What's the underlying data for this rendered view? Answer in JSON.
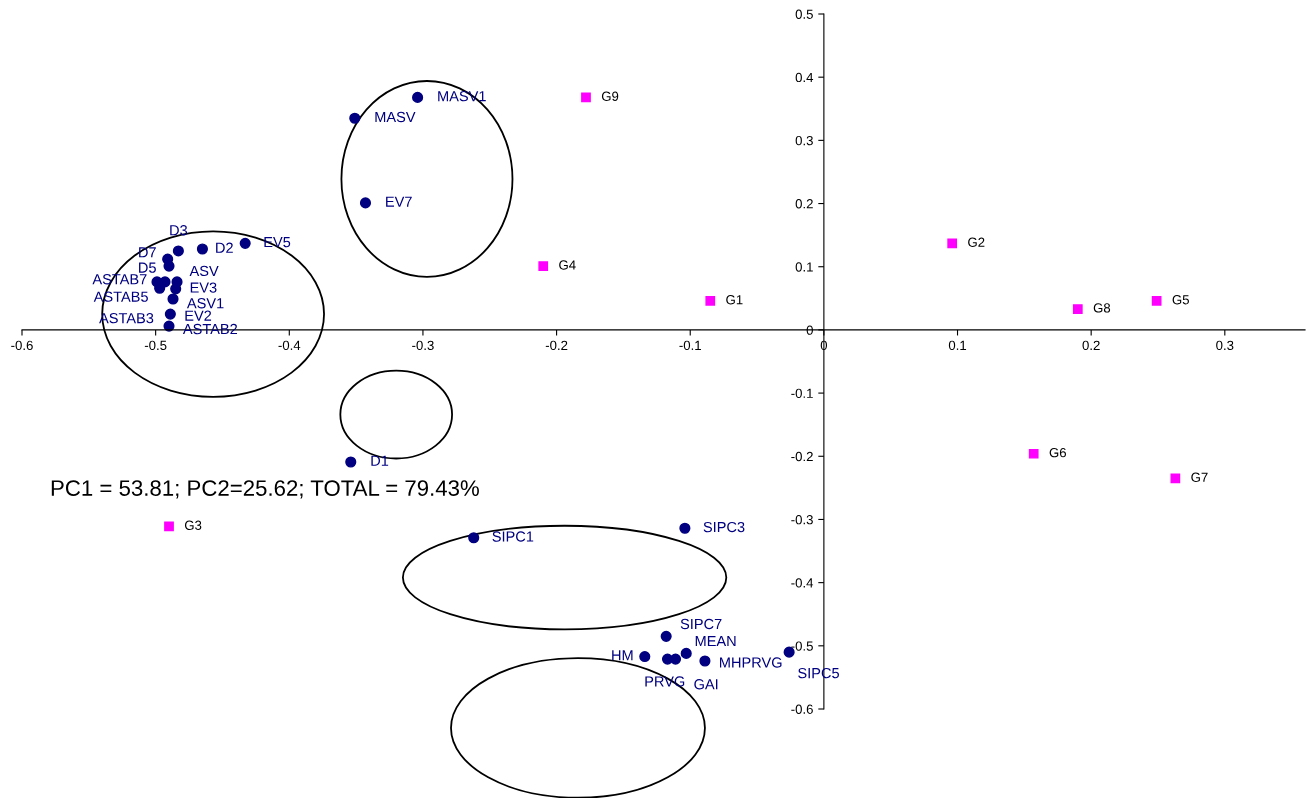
{
  "chart_data": {
    "type": "scatter",
    "annotations": [
      "PC1 = 53.81; PC2=25.62; TOTAL = 79.43%"
    ],
    "series": [
      {
        "color": "#000080",
        "marker": "circle",
        "x": [
          -0.304,
          -0.351,
          -0.343,
          -0.433,
          -0.465,
          -0.483,
          -0.491,
          -0.49,
          -0.499,
          -0.493,
          -0.484,
          -0.497,
          -0.485,
          -0.487,
          -0.489,
          -0.49,
          -0.354,
          -0.262,
          -0.104,
          -0.118,
          -0.134,
          -0.117,
          -0.111,
          -0.103,
          -0.089,
          -0.026
        ],
        "values": [
          0.368,
          0.335,
          0.201,
          0.137,
          0.128,
          0.125,
          0.112,
          0.101,
          0.076,
          0.076,
          0.076,
          0.066,
          0.065,
          0.049,
          0.025,
          0.006,
          -0.209,
          -0.329,
          -0.314,
          -0.485,
          -0.517,
          -0.521,
          -0.521,
          -0.512,
          -0.524,
          -0.51
        ],
        "value_labels": [
          "MASV1",
          "MASV",
          "EV7",
          "EV5",
          "D2",
          "D3",
          "D7",
          "D5",
          "ASTAB7",
          "ASTAB3",
          "ASV",
          "ASTAB5",
          "EV3",
          "ASV1",
          "EV2",
          "ASTAB2",
          "D1",
          "SIPC1",
          "SIPC3",
          "SIPC7",
          "HM",
          "PRVG",
          "GAI",
          "MEAN",
          "MHPRVG",
          "SIPC5"
        ]
      },
      {
        "color": "#ff00ff",
        "marker": "square",
        "x": [
          -0.178,
          -0.21,
          -0.085,
          0.096,
          0.19,
          0.249,
          0.157,
          0.263,
          -0.49
        ],
        "values": [
          0.368,
          0.101,
          0.046,
          0.137,
          0.033,
          0.046,
          -0.196,
          -0.235,
          -0.311
        ],
        "value_labels": [
          "G9",
          "G4",
          "G1",
          "G2",
          "G8",
          "G5",
          "G6",
          "G7",
          "G3"
        ]
      }
    ],
    "xlim": [
      -0.6,
      0.36
    ],
    "xticks": [
      -0.6,
      -0.5,
      -0.4,
      -0.3,
      -0.2,
      -0.1,
      0,
      0.1,
      0.2,
      0.3
    ],
    "ylim": [
      -0.6,
      0.5
    ],
    "yticks": [
      -0.6,
      -0.5,
      -0.4,
      -0.3,
      -0.2,
      -0.1,
      0,
      0.1,
      0.2,
      0.3,
      0.4,
      0.5
    ],
    "grid": false
  }
}
